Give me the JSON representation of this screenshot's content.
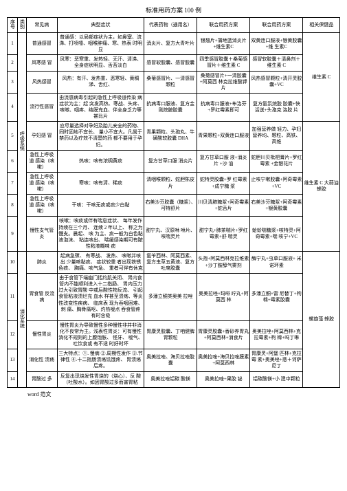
{
  "title": "标准用药方案 100 例",
  "footer": "word 范文",
  "headers": {
    "seq": "序号",
    "category": "类别",
    "disease": "常见病",
    "symptom": "典型症状",
    "rep": "代表药物（通用名）",
    "plan1": "联合用药方案",
    "plan2": "联合用药方案",
    "health": "相关保健品"
  },
  "cat1": "呼吸系统",
  "cat2": "消化系统",
  "rows": [
    {
      "n": "1",
      "d": "普通感冒",
      "s": "普通感：以局部症状为主，如鼻塞、流涕、打喷嚏、咽喉肿痛、寒、热表 时明显",
      "r": "消炎片、复方大青叶片",
      "p1": "银翘片+蒲地蓝消炎片+维生素C",
      "p2": "双黄连口服液+银黄胶囊+维 生素C"
    },
    {
      "n": "2",
      "d": "风寒感 冒",
      "s": "风寒：恶寒重、发热轻、无汗、清涕、全身症状明显、舌苔淡白",
      "r": "感冒软胶囊、感冒胶囊",
      "p1": "四季感冒胶囊＋桑菊感冒片＋维生素 C",
      "p2": "感冒软胶囊＋清鼻剂＋维生素 C"
    },
    {
      "n": "3",
      "d": "风热感冒",
      "s": "风热：有汗、发热重、恶寒轻、黄稠涕、舌红、",
      "r": "桑菊感冒片、一清感冒颗粒",
      "p1": "桑菊感冒片+一清胶囊+阿莫西 林克拉维酸钾 片",
      "p2": "风热感冒颗粒+清开灵胶囊+VC"
    },
    {
      "n": "4",
      "d": "流行性感冒",
      "s": "由流感病毒引起的急性上呼吸道传染 病症状为主：起 突发高热、寒战、头疼、咳嗽、咽疼、结膜充血、伴全身乏力等 甚比片",
      "r": "抗病毒口服液、复方金刚烷胺胶囊",
      "p1": "抗病毒口服液+布洛芬+罗红霉素即可",
      "p2": "复方氨氛烷胶 胶囊+快活送+头孢克 洛胶 片"
    },
    {
      "n": "5",
      "d": "孕妇感 冒",
      "s": "应尽量选择对孕妇及胎儿安全的药物、同时固地不宜长、 量小不宜大。凡属于禁药以及疗效不清楚的药 都不要用于孕妇。",
      "r": "青果颗粒、头孢丸、牛磺酸软胶囊 DHA",
      "p1": "青果颗粒+双黄连口服液",
      "p2": "加强营养做 轻力、孕妇 营养均、颗粒、高铁、高维"
    },
    {
      "n": "6",
      "d": "急性上呼吸道 感染（咳嗽）",
      "s": "热咳：咳有浓稠黄痰",
      "r": "复方甘草口服 消炎片",
      "p1": "复方甘草口服 液+消炎片 +沙 油",
      "p2": "蛇胆川贝枇杷膏片+罗红霉素 +金银花片"
    },
    {
      "n": "7",
      "d": "急性上呼吸道 感染（咳嗽）",
      "s": "寒咳：咳有清、稀痰",
      "r": "清咽喉颗粒、蛇胆陈皮片",
      "p1": "蛇特灵胶囊+罗 红霉素+成宁糖 浆",
      "p2": "止咳宁嗽胶囊+阿奇霉素+VC"
    },
    {
      "n": "8",
      "d": "急性上呼吸道 感染（咳嗽）",
      "s": "干咳：干咳无痰或痰少白黏",
      "r": "右美沙芬胶囊（糖浆）、可特舒片",
      "p1": "川贝清肺糖浆+阿奇霉素+蛇舌片",
      "p2": "右美沙芬糖浆+阿奇霉素+银黄胶囊"
    },
    {
      "n": "9",
      "d": "慢性支气管炎",
      "s": "咳嗽：咳痰或伴有喘息症状、 每年发作持续在三个月、 连续 2 年以上、 称之为慢支。晨起、 咳 为主、痰一般为白色黏液泡沫、 粘连咳出、 喘缓感染期可有脓性粘液糊味 痰",
      "r": "甜宁丸、汉原咻 咻片、咳喘灵片",
      "p1": "甜宁丸+肺茶喘片+罗红霉素+舒 喘灵",
      "p2": "蛤蚧喘糖浆+咳特灵+阿奇霉素+喘 咳宁+VC"
    },
    {
      "n": "10",
      "d": "肺炎",
      "s": "起病急骤、 有寒战、 发热、 咳嗽并咳出 少量咳黏痰、 症状较重 者出现铁锈色痰、 胸痛、啖气急、 重者可伴有休克",
      "r": "氨苄西林、阿莫西素、复方虫草五黄液、复方吐席胶囊",
      "p1": "头孢+阿莫西林克拉维素+沙丁胺醇气雾剂",
      "p2": "酶宁丸+虫草口服液+ 米诺环素"
    },
    {
      "n": "11",
      "d": "胃食管 反流病",
      "s": "由于食管下端幽门括约肌关闭、 胃内食管内不能顺利进入十二指肠、 胃内压力过大引致胃酸 中或后酸性物反流、 引起食管粘液溃烂充 血水 样甚至溃疡、等炎性改变性疾病、 临床表 现为吞咽困难、刺 痛、胸骨痛呕、灼热嗳点 吞食管疼 有时含吸",
      "r": "多潘立酮类奥美 拉唑",
      "p1": "奥美拉唑+玛啡 咛丸+阿莫西 林",
      "p2": "多潘立酮+雷 尼替丁+枸 橼+霉素胶囊"
    },
    {
      "n": "12",
      "d": "慢性胃炎",
      "s": "慢性胃炎为导致慢性多种慢性非并非消 化不良常为主。浅表性胃炎：可有慢性消化不规则的上腹饱胀、 怪牙、 嗳气、 吐饮食或 有不适 时好时坏",
      "r": "胃康灵胶囊、丁咱健脾胃颗粒",
      "p1": "胃康灵胶囊+香砂养胃丸+阿莫西林+消食片",
      "p2": "奥美拉唑+阿莫西林+克拉霉素+枸 橼+吗丁啉"
    },
    {
      "n": "13",
      "d": "消化性 溃疡",
      "s": "三大特点：①. 慢病 ②.周期性发作 ③.节律性 ④.十二指肠溃疡饥饿疼、 胃溃疡后疼。",
      "r": "奥美拉唑、海贝拉唑胶囊",
      "p1": "奥美拉唑+海贝拉唑膜素+阿莫西林",
      "p2": "胃康灵+阿堡 匹林+克拉霉 素+奥美唑+悲＋诃萨尼丁"
    },
    {
      "n": "14",
      "d": "胃酸过 多",
      "s": "反复出现烧发性胃烧的（烧心）、反 酸（吐酸水）。如因胃酸过多而害胃粘",
      "r": "奥美拉唑铝碳 酸镁",
      "p1": "奥美拉唑+果胶 铋",
      "p2": "铝碳酸镁+小 建中颗粒"
    }
  ],
  "health1": "维生素 C",
  "health2": "维生素 C 大蒜油 蜂胶",
  "health3": "螺旋藻 蜂胶"
}
